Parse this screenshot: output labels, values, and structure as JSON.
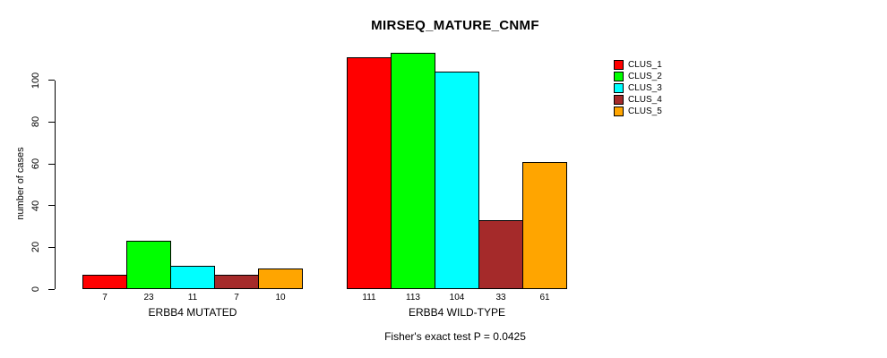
{
  "chart_data": {
    "type": "bar",
    "title": "MIRSEQ_MATURE_CNMF",
    "ylabel": "number of cases",
    "xlabel": "",
    "caption": "Fisher's exact test P = 0.0425",
    "ylim": [
      0,
      117
    ],
    "yticks": [
      0,
      20,
      40,
      60,
      80,
      100
    ],
    "grid": false,
    "legend_position": "right",
    "categories": [
      "ERBB4 MUTATED",
      "ERBB4 WILD-TYPE"
    ],
    "series": [
      {
        "name": "CLUS_1",
        "color": "#ff0000",
        "values": [
          7,
          111
        ]
      },
      {
        "name": "CLUS_2",
        "color": "#00ff00",
        "values": [
          23,
          113
        ]
      },
      {
        "name": "CLUS_3",
        "color": "#00ffff",
        "values": [
          11,
          104
        ]
      },
      {
        "name": "CLUS_4",
        "color": "#a52a2a",
        "values": [
          7,
          33
        ]
      },
      {
        "name": "CLUS_5",
        "color": "#ffa500",
        "values": [
          10,
          61
        ]
      }
    ],
    "bar_value_labels_shown": true
  }
}
